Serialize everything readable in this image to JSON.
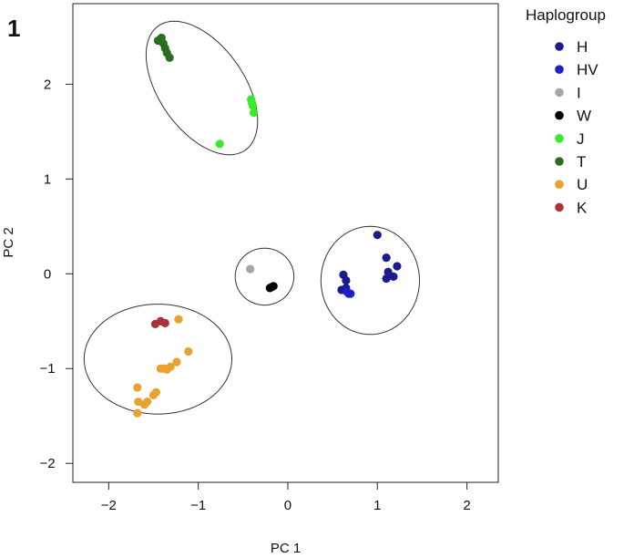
{
  "panel_label": "1",
  "chart_data": {
    "type": "scatter",
    "title": "",
    "xlabel": "PC 1",
    "ylabel": "PC 2",
    "xlim": [
      -2.4,
      2.35
    ],
    "ylim": [
      -2.2,
      2.85
    ],
    "x_ticks": [
      -2,
      -1,
      0,
      1,
      2
    ],
    "y_ticks": [
      -2,
      -1,
      0,
      1,
      2
    ],
    "x_tick_labels": [
      "−2",
      "−1",
      "0",
      "1",
      "2"
    ],
    "y_tick_labels": [
      "−2",
      "−1",
      "0",
      "1",
      "2"
    ],
    "grid": false,
    "legend": {
      "title": "Haplogroup",
      "position": "right-outside"
    },
    "series": [
      {
        "name": "H",
        "color": "#1b1b8f",
        "points": [
          [
            1.0,
            0.41
          ],
          [
            1.1,
            0.17
          ],
          [
            1.12,
            0.02
          ],
          [
            1.22,
            0.08
          ],
          [
            1.18,
            -0.03
          ],
          [
            1.1,
            -0.05
          ],
          [
            0.62,
            -0.01
          ],
          [
            0.65,
            -0.07
          ],
          [
            0.6,
            -0.17
          ],
          [
            0.65,
            -0.15
          ]
        ]
      },
      {
        "name": "HV",
        "color": "#1f1fcc",
        "points": [
          [
            0.68,
            -0.21
          ],
          [
            0.66,
            -0.19
          ],
          [
            0.7,
            -0.21
          ]
        ]
      },
      {
        "name": "I",
        "color": "#a6a6a6",
        "points": [
          [
            -0.42,
            0.05
          ]
        ]
      },
      {
        "name": "W",
        "color": "#000000",
        "points": [
          [
            -0.18,
            -0.14
          ],
          [
            -0.16,
            -0.13
          ],
          [
            -0.2,
            -0.15
          ]
        ]
      },
      {
        "name": "J",
        "color": "#39ea2a",
        "points": [
          [
            -0.41,
            1.84
          ],
          [
            -0.4,
            1.8
          ],
          [
            -0.39,
            1.77
          ],
          [
            -0.38,
            1.7
          ],
          [
            -0.76,
            1.37
          ]
        ]
      },
      {
        "name": "T",
        "color": "#2a6e22",
        "points": [
          [
            -1.45,
            2.46
          ],
          [
            -1.41,
            2.49
          ],
          [
            -1.39,
            2.43
          ],
          [
            -1.37,
            2.38
          ],
          [
            -1.35,
            2.33
          ],
          [
            -1.32,
            2.28
          ]
        ]
      },
      {
        "name": "U",
        "color": "#e8a22e",
        "points": [
          [
            -1.22,
            -0.48
          ],
          [
            -1.11,
            -0.82
          ],
          [
            -1.24,
            -0.93
          ],
          [
            -1.31,
            -0.98
          ],
          [
            -1.35,
            -1.01
          ],
          [
            -1.38,
            -1.0
          ],
          [
            -1.42,
            -1.0
          ],
          [
            -1.47,
            -1.25
          ],
          [
            -1.5,
            -1.28
          ],
          [
            -1.57,
            -1.35
          ],
          [
            -1.6,
            -1.38
          ],
          [
            -1.67,
            -1.35
          ],
          [
            -1.68,
            -1.2
          ],
          [
            -1.68,
            -1.47
          ]
        ]
      },
      {
        "name": "K",
        "color": "#a8323a",
        "points": [
          [
            -1.48,
            -0.53
          ],
          [
            -1.42,
            -0.5
          ],
          [
            -1.37,
            -0.52
          ]
        ]
      }
    ],
    "ellipses": [
      {
        "group": "J/T",
        "cx": -0.96,
        "cy": 1.96,
        "rx": 0.45,
        "ry": 0.8,
        "angle_deg": 35
      },
      {
        "group": "H/HV",
        "cx": 0.92,
        "cy": -0.07,
        "rx": 0.52,
        "ry": 0.57,
        "angle_deg": 0
      },
      {
        "group": "I/W",
        "cx": -0.26,
        "cy": -0.03,
        "rx": 0.31,
        "ry": 0.3,
        "angle_deg": 0
      },
      {
        "group": "U/K",
        "cx": -1.45,
        "cy": -0.9,
        "rx": 0.78,
        "ry": 0.58,
        "angle_deg": 0
      }
    ]
  }
}
